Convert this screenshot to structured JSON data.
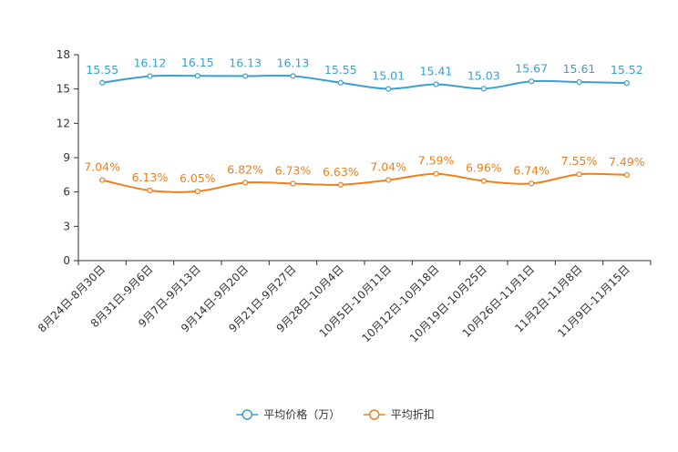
{
  "chart_data": {
    "type": "line",
    "title": "",
    "xlabel": "",
    "ylabel": "",
    "ylim": [
      0,
      18
    ],
    "yticks": [
      0,
      3,
      6,
      9,
      12,
      15,
      18
    ],
    "categories": [
      "8月24日-8月30日",
      "8月31日-9月6日",
      "9月7日-9月13日",
      "9月14日-9月20日",
      "9月21日-9月27日",
      "9月28日-10月4日",
      "10月5日-10月11日",
      "10月12日-10月18日",
      "10月19日-10月25日",
      "10月26日-11月1日",
      "11月2日-11月8日",
      "11月9日-11月15日"
    ],
    "series": [
      {
        "name": "平均价格（万）",
        "color": "#3aa0d2",
        "values": [
          15.55,
          16.12,
          16.15,
          16.13,
          16.13,
          15.55,
          15.01,
          15.41,
          15.03,
          15.67,
          15.61,
          15.52
        ],
        "labels": [
          "15.55",
          "16.12",
          "16.15",
          "16.13",
          "16.13",
          "15.55",
          "15.01",
          "15.41",
          "15.03",
          "15.67",
          "15.61",
          "15.52"
        ]
      },
      {
        "name": "平均折扣",
        "color": "#f07f1c",
        "values": [
          7.04,
          6.13,
          6.05,
          6.82,
          6.73,
          6.63,
          7.04,
          7.59,
          6.96,
          6.74,
          7.55,
          7.49
        ],
        "labels": [
          "7.04%",
          "6.13%",
          "6.05%",
          "6.82%",
          "6.73%",
          "6.63%",
          "7.04%",
          "7.59%",
          "6.96%",
          "6.74%",
          "7.55%",
          "7.49%"
        ]
      }
    ],
    "grid": false,
    "legend_position": "bottom-center"
  }
}
